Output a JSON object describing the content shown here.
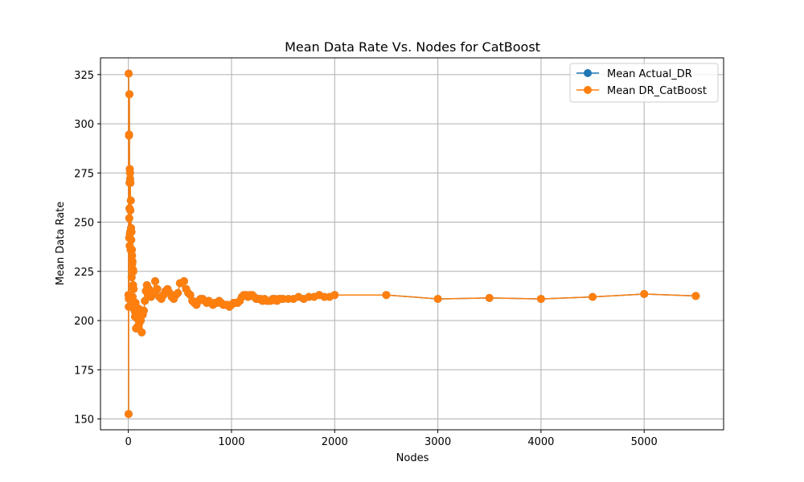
{
  "chart_data": {
    "type": "line",
    "title": "Mean Data Rate Vs. Nodes for CatBoost",
    "xlabel": "Nodes",
    "ylabel": "Mean Data Rate",
    "xlim": [
      -270,
      5770
    ],
    "ylim": [
      144.5,
      333.5
    ],
    "xticks": [
      0,
      1000,
      2000,
      3000,
      4000,
      5000
    ],
    "yticks": [
      150,
      175,
      200,
      225,
      250,
      275,
      300,
      325
    ],
    "grid": true,
    "legend_position": "top-right",
    "colors": {
      "actual": "#1f77b4",
      "catboost": "#ff7f0e",
      "grid": "#b0b0b0"
    },
    "series": [
      {
        "name": "Mean Actual_DR",
        "color": "#1f77b4",
        "x": [
          1,
          2,
          3,
          4,
          5,
          6,
          7,
          8,
          9,
          10,
          11,
          12,
          13,
          14,
          15,
          16,
          17,
          18,
          19,
          20,
          22,
          24,
          26,
          28,
          30,
          32,
          34,
          36,
          38,
          40,
          42,
          44,
          46,
          48,
          50,
          55,
          60,
          65,
          70,
          75,
          80,
          85,
          90,
          95,
          100,
          110,
          120,
          130,
          140,
          150,
          160,
          170,
          180,
          190,
          200,
          220,
          240,
          260,
          280,
          300,
          320,
          340,
          360,
          380,
          400,
          420,
          440,
          460,
          480,
          500,
          520,
          540,
          560,
          580,
          600,
          620,
          640,
          660,
          680,
          700,
          720,
          740,
          760,
          780,
          800,
          820,
          840,
          860,
          880,
          900,
          920,
          940,
          960,
          980,
          1000,
          1020,
          1040,
          1060,
          1080,
          1100,
          1120,
          1140,
          1160,
          1180,
          1200,
          1220,
          1240,
          1260,
          1280,
          1300,
          1320,
          1340,
          1360,
          1380,
          1400,
          1420,
          1440,
          1460,
          1480,
          1500,
          1550,
          1600,
          1650,
          1700,
          1750,
          1800,
          1850,
          1900,
          1950,
          2000,
          2500,
          3000,
          3500,
          4000,
          4500,
          5000,
          5500
        ],
        "y": [
          213,
          152.5,
          325.5,
          207,
          211,
          294,
          294.5,
          242,
          252,
          315,
          257,
          270,
          238,
          277,
          244,
          275,
          272,
          245,
          256,
          270,
          236,
          261,
          247,
          241,
          245,
          222,
          236,
          233,
          229,
          230,
          212,
          226,
          218,
          225,
          216,
          208,
          205,
          202,
          209,
          196,
          203,
          201,
          197,
          204,
          206,
          203,
          200,
          194,
          203,
          205,
          210,
          215,
          218,
          213,
          216,
          212,
          214,
          220,
          216,
          212,
          211,
          213,
          215,
          216,
          214,
          212,
          211,
          213,
          214,
          219,
          219,
          220,
          216,
          214,
          213,
          210,
          209,
          208,
          210,
          211,
          211,
          210,
          209,
          210,
          209,
          208,
          209,
          209,
          210,
          209,
          208,
          208,
          208,
          207,
          208,
          209,
          209,
          209,
          210,
          212,
          213,
          213,
          212,
          213,
          213,
          212,
          211,
          211,
          211,
          210,
          211,
          210,
          210,
          210,
          211,
          211,
          210,
          211,
          211,
          211,
          211,
          211,
          212,
          211,
          212,
          212,
          213,
          212,
          212,
          213,
          213,
          211,
          211.5,
          211,
          212,
          213.5,
          212.5
        ]
      },
      {
        "name": "Mean DR_CatBoost",
        "color": "#ff7f0e",
        "x": [
          1,
          2,
          3,
          4,
          5,
          6,
          7,
          8,
          9,
          10,
          11,
          12,
          13,
          14,
          15,
          16,
          17,
          18,
          19,
          20,
          22,
          24,
          26,
          28,
          30,
          32,
          34,
          36,
          38,
          40,
          42,
          44,
          46,
          48,
          50,
          55,
          60,
          65,
          70,
          75,
          80,
          85,
          90,
          95,
          100,
          110,
          120,
          130,
          140,
          150,
          160,
          170,
          180,
          190,
          200,
          220,
          240,
          260,
          280,
          300,
          320,
          340,
          360,
          380,
          400,
          420,
          440,
          460,
          480,
          500,
          520,
          540,
          560,
          580,
          600,
          620,
          640,
          660,
          680,
          700,
          720,
          740,
          760,
          780,
          800,
          820,
          840,
          860,
          880,
          900,
          920,
          940,
          960,
          980,
          1000,
          1020,
          1040,
          1060,
          1080,
          1100,
          1120,
          1140,
          1160,
          1180,
          1200,
          1220,
          1240,
          1260,
          1280,
          1300,
          1320,
          1340,
          1360,
          1380,
          1400,
          1420,
          1440,
          1460,
          1480,
          1500,
          1550,
          1600,
          1650,
          1700,
          1750,
          1800,
          1850,
          1900,
          1950,
          2000,
          2500,
          3000,
          3500,
          4000,
          4500,
          5000,
          5500
        ],
        "y": [
          213,
          152.5,
          325.5,
          207,
          211,
          294,
          294.5,
          242,
          252,
          315,
          257,
          270,
          238,
          277,
          244,
          275,
          272,
          245,
          256,
          270,
          236,
          261,
          247,
          241,
          245,
          222,
          236,
          233,
          229,
          230,
          212,
          226,
          218,
          225,
          216,
          208,
          205,
          202,
          209,
          196,
          203,
          201,
          197,
          204,
          206,
          203,
          200,
          194,
          203,
          205,
          210,
          215,
          218,
          213,
          216,
          212,
          214,
          220,
          216,
          212,
          211,
          213,
          215,
          216,
          214,
          212,
          211,
          213,
          214,
          219,
          219,
          220,
          216,
          214,
          213,
          210,
          209,
          208,
          210,
          211,
          211,
          210,
          209,
          210,
          209,
          208,
          209,
          209,
          210,
          209,
          208,
          208,
          208,
          207,
          208,
          209,
          209,
          209,
          210,
          212,
          213,
          213,
          212,
          213,
          213,
          212,
          211,
          211,
          211,
          210,
          211,
          210,
          210,
          210,
          211,
          211,
          210,
          211,
          211,
          211,
          211,
          211,
          212,
          211,
          212,
          212,
          213,
          212,
          212,
          213,
          213,
          211,
          211.5,
          211,
          212,
          213.5,
          212.5
        ]
      }
    ]
  }
}
